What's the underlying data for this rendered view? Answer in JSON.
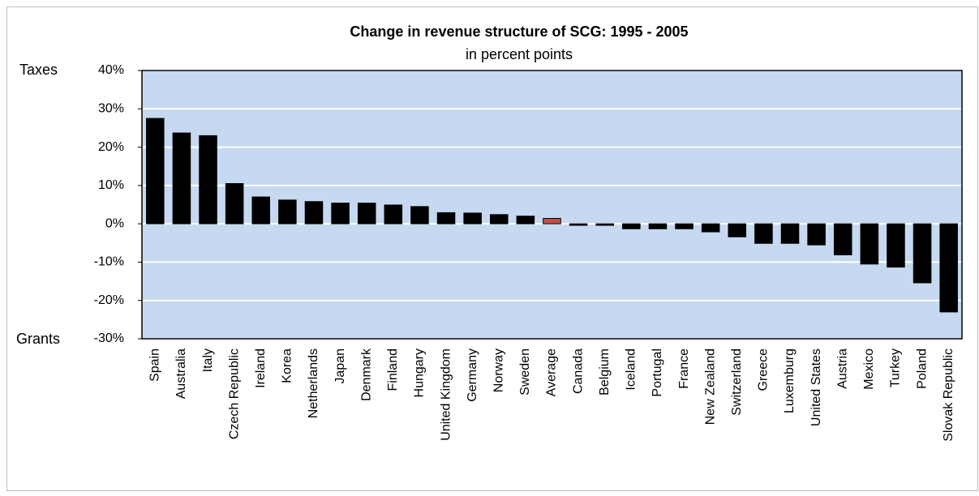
{
  "chart_data": {
    "type": "bar",
    "title": "Change in revenue structure of SCG: 1995 - 2005",
    "subtitle": "in percent points",
    "top_label": "Taxes",
    "bottom_label": "Grants",
    "categories": [
      "Spain",
      "Australia",
      "Italy",
      "Czech Republic",
      "Ireland",
      "Korea",
      "Netherlands",
      "Japan",
      "Denmark",
      "Finland",
      "Hungary",
      "United Kingdom",
      "Germany",
      "Norway",
      "Sweden",
      "Average",
      "Canada",
      "Belgium",
      "Iceland",
      "Portugal",
      "France",
      "New Zealand",
      "Switzerland",
      "Greece",
      "Luxemburg",
      "United States",
      "Austria",
      "Mexico",
      "Turkey",
      "Poland",
      "Slovak Republic"
    ],
    "values": [
      27.5,
      23.7,
      23,
      10.5,
      7,
      6.2,
      5.8,
      5.4,
      5.4,
      4.9,
      4.5,
      2.9,
      2.8,
      2.4,
      2.0,
      1.4,
      -0.4,
      -0.4,
      -1.3,
      -1.3,
      -1.3,
      -2.1,
      -3.4,
      -5.1,
      -5.1,
      -5.5,
      -8.1,
      -10.5,
      -11.3,
      -15.4,
      -23
    ],
    "colors": [
      "#000000",
      "#000000",
      "#000000",
      "#000000",
      "#000000",
      "#000000",
      "#000000",
      "#000000",
      "#000000",
      "#000000",
      "#000000",
      "#000000",
      "#000000",
      "#000000",
      "#000000",
      "#c0504d",
      "#000000",
      "#000000",
      "#000000",
      "#000000",
      "#000000",
      "#000000",
      "#000000",
      "#000000",
      "#000000",
      "#000000",
      "#000000",
      "#000000",
      "#000000",
      "#000000",
      "#000000"
    ],
    "ylim": [
      -30,
      40
    ],
    "yticks": [
      {
        "value": -30,
        "label": "-30%"
      },
      {
        "value": -20,
        "label": "-20%"
      },
      {
        "value": -10,
        "label": "-10%"
      },
      {
        "value": 0,
        "label": "0%"
      },
      {
        "value": 10,
        "label": "10%"
      },
      {
        "value": 20,
        "label": "20%"
      },
      {
        "value": 30,
        "label": "30%"
      },
      {
        "value": 40,
        "label": "40%"
      }
    ],
    "grid": true,
    "plot_background": "#c6d9f1"
  }
}
